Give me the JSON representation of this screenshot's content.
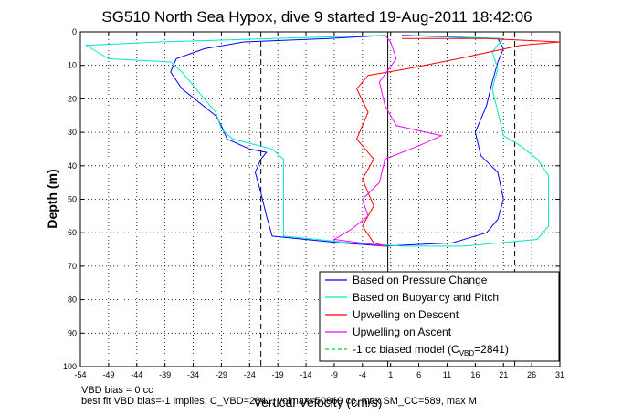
{
  "chart_data": {
    "type": "line",
    "title": "SG510 North Sea Hypox, dive 9 started 19-Aug-2011 18:42:06",
    "xlabel": "Vertical Velocity (cm/s)",
    "ylabel": "Depth (m)",
    "xlim": [
      -54,
      31
    ],
    "ylim": [
      0,
      100
    ],
    "y_reversed": true,
    "x_ticks": [
      -54,
      -49,
      -44,
      -39,
      -34,
      -29,
      -24,
      -19,
      -14,
      -9,
      -4,
      1,
      6,
      11,
      16,
      21,
      26,
      31
    ],
    "y_ticks": [
      0,
      10,
      20,
      30,
      40,
      50,
      60,
      70,
      80,
      90,
      100
    ],
    "grid": true,
    "legend_position": "bottom-right",
    "vertical_lines": [
      {
        "x": -22,
        "style": "black-dashed"
      },
      {
        "x": 0.5,
        "style": "black-solid"
      },
      {
        "x": 23,
        "style": "black-dashed"
      }
    ],
    "series": [
      {
        "name": "Based on Pressure Change",
        "color": "#0000ff",
        "points": [
          [
            0,
            1
          ],
          [
            -10,
            2
          ],
          [
            -25,
            3
          ],
          [
            -32,
            5
          ],
          [
            -37,
            8
          ],
          [
            -38,
            12
          ],
          [
            -36,
            17
          ],
          [
            -33,
            21
          ],
          [
            -30,
            25
          ],
          [
            -29,
            28
          ],
          [
            -28,
            32
          ],
          [
            -24,
            35
          ],
          [
            -21,
            36
          ],
          [
            -22,
            38
          ],
          [
            -23,
            42
          ],
          [
            -22,
            48
          ],
          [
            -21,
            55
          ],
          [
            -20,
            61
          ],
          [
            -8,
            63
          ],
          [
            0,
            64
          ],
          [
            12,
            63
          ],
          [
            18,
            60
          ],
          [
            20,
            56
          ],
          [
            21,
            50
          ],
          [
            20,
            42
          ],
          [
            17,
            37
          ],
          [
            16,
            30
          ],
          [
            18,
            22
          ],
          [
            19,
            15
          ],
          [
            20,
            9
          ],
          [
            21,
            5
          ],
          [
            20,
            2
          ],
          [
            3,
            1
          ]
        ]
      },
      {
        "name": "Based on Buoyancy and Pitch",
        "color": "#00e8c8",
        "points": [
          [
            0,
            1
          ],
          [
            -20,
            2
          ],
          [
            -40,
            3
          ],
          [
            -53,
            4
          ],
          [
            -51,
            6
          ],
          [
            -49,
            8
          ],
          [
            -38,
            9
          ],
          [
            -36,
            12
          ],
          [
            -33,
            18
          ],
          [
            -30,
            24
          ],
          [
            -29,
            29
          ],
          [
            -27,
            32
          ],
          [
            -20,
            35
          ],
          [
            -18,
            38
          ],
          [
            -18,
            44
          ],
          [
            -18,
            52
          ],
          [
            -18,
            61
          ],
          [
            -6,
            63
          ],
          [
            3,
            64
          ],
          [
            14,
            64
          ],
          [
            27,
            62
          ],
          [
            29,
            58
          ],
          [
            29,
            50
          ],
          [
            29,
            43
          ],
          [
            27,
            38
          ],
          [
            24,
            34
          ],
          [
            21,
            31
          ],
          [
            20,
            24
          ],
          [
            19,
            17
          ],
          [
            20,
            11
          ],
          [
            19,
            6
          ],
          [
            21,
            2
          ],
          [
            5,
            1
          ]
        ]
      },
      {
        "name": "Upwelling on Descent",
        "color": "#ff0000",
        "points": [
          [
            3,
            2
          ],
          [
            18,
            2
          ],
          [
            31,
            3
          ],
          [
            24,
            4
          ],
          [
            13,
            8
          ],
          [
            4,
            11
          ],
          [
            -3,
            13
          ],
          [
            -5,
            17
          ],
          [
            -3,
            24
          ],
          [
            -5,
            32
          ],
          [
            -2,
            38
          ],
          [
            -4,
            44
          ],
          [
            -2,
            52
          ],
          [
            -4,
            58
          ],
          [
            -2,
            63
          ],
          [
            0,
            64
          ]
        ]
      },
      {
        "name": "Upwelling on Ascent",
        "color": "#ff00ff",
        "points": [
          [
            0,
            64
          ],
          [
            -9,
            62
          ],
          [
            -6,
            59
          ],
          [
            -3,
            55
          ],
          [
            -4,
            50
          ],
          [
            -1,
            45
          ],
          [
            0,
            38
          ],
          [
            6,
            34
          ],
          [
            10,
            31
          ],
          [
            2,
            28
          ],
          [
            0,
            22
          ],
          [
            -1,
            15
          ],
          [
            2,
            8
          ],
          [
            1,
            3
          ],
          [
            0,
            1
          ]
        ]
      },
      {
        "name": "-1 cc biased model (C_VBD=2841)",
        "color": "#00dd00",
        "style": "dashed",
        "points": []
      }
    ],
    "legend": [
      "Based on Pressure Change",
      "Based on Buoyancy and Pitch",
      "Upwelling on Descent",
      "Upwelling on Ascent",
      "-1 cc biased model (C"
    ],
    "legend_last_sub": "VBD",
    "legend_last_tail": "=2841)",
    "annotations": [
      "VBD bias = 0 cc",
      "best fit VBD bias=-1 implies: C_VBD=2841, volmax=50869 cc, max SM_CC=589, max M"
    ]
  }
}
